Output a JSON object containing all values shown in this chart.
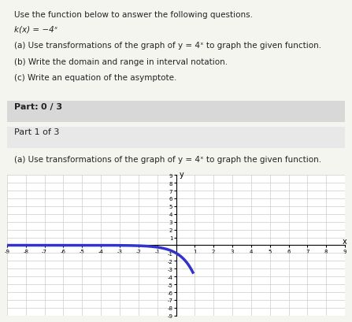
{
  "title_lines": [
    "Use the function below to answer the following questions.",
    "k(x) = −4ˣ",
    "(a) Use transformations of the graph of y = 4ˣ to graph the given function.",
    "(b) Write the domain and range in interval notation.",
    "(c) Write an equation of the asymptote.",
    "Part: 0 / 3",
    "Part 1 of 3",
    "(a) Use transformations of the graph of y = 4ˣ to graph the given function."
  ],
  "graph_xlim": [
    -9,
    9
  ],
  "graph_ylim": [
    -9,
    9
  ],
  "x_ticks": [
    -9,
    -8,
    -7,
    -6,
    -5,
    -4,
    -3,
    -2,
    -1,
    0,
    1,
    2,
    3,
    4,
    5,
    6,
    7,
    8,
    9
  ],
  "y_ticks": [
    -9,
    -8,
    -7,
    -6,
    -5,
    -4,
    -3,
    -2,
    -1,
    0,
    1,
    2,
    3,
    4,
    5,
    6,
    7,
    8,
    9
  ],
  "curve_color": "#3333cc",
  "curve_linewidth": 2.5,
  "grid_color": "#cccccc",
  "bg_color": "#f5f5f0",
  "graph_bg": "#ffffff",
  "text_bg1": "#e8e8e8",
  "text_bg2": "#f0f0f0",
  "part_bar_color": "#d0d0d0",
  "part_bar_fill": "#b0c4de"
}
